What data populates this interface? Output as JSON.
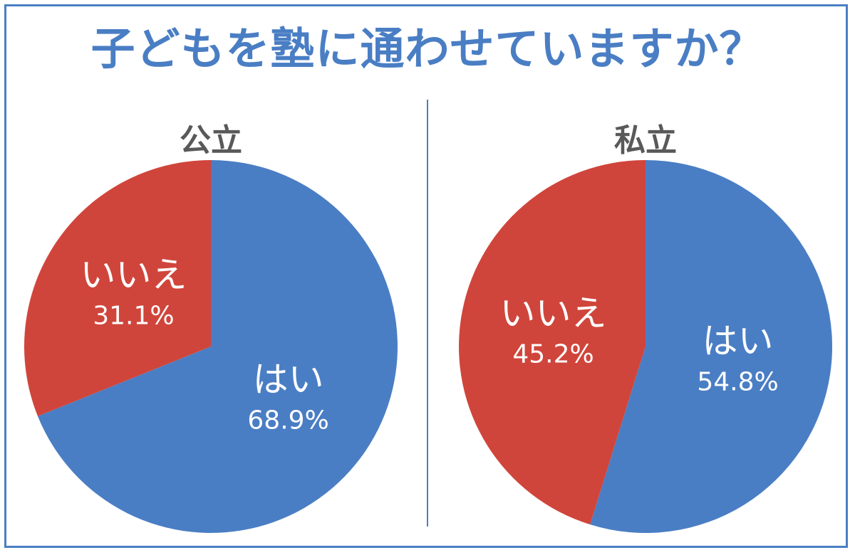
{
  "title": "子どもを塾に通わせていますか？",
  "colors": {
    "yes": "#4a7ec4",
    "no": "#d0453b",
    "frame": "#4a7ec4",
    "panel_title": "#595959"
  },
  "chart_data": [
    {
      "type": "pie",
      "title": "公立",
      "slices": [
        {
          "label": "はい",
          "value": 68.9,
          "value_label": "68.9%",
          "color": "#4a7ec4"
        },
        {
          "label": "いいえ",
          "value": 31.1,
          "value_label": "31.1%",
          "color": "#d0453b"
        }
      ]
    },
    {
      "type": "pie",
      "title": "私立",
      "slices": [
        {
          "label": "はい",
          "value": 54.8,
          "value_label": "54.8%",
          "color": "#4a7ec4"
        },
        {
          "label": "いいえ",
          "value": 45.2,
          "value_label": "45.2%",
          "color": "#d0453b"
        }
      ]
    }
  ]
}
